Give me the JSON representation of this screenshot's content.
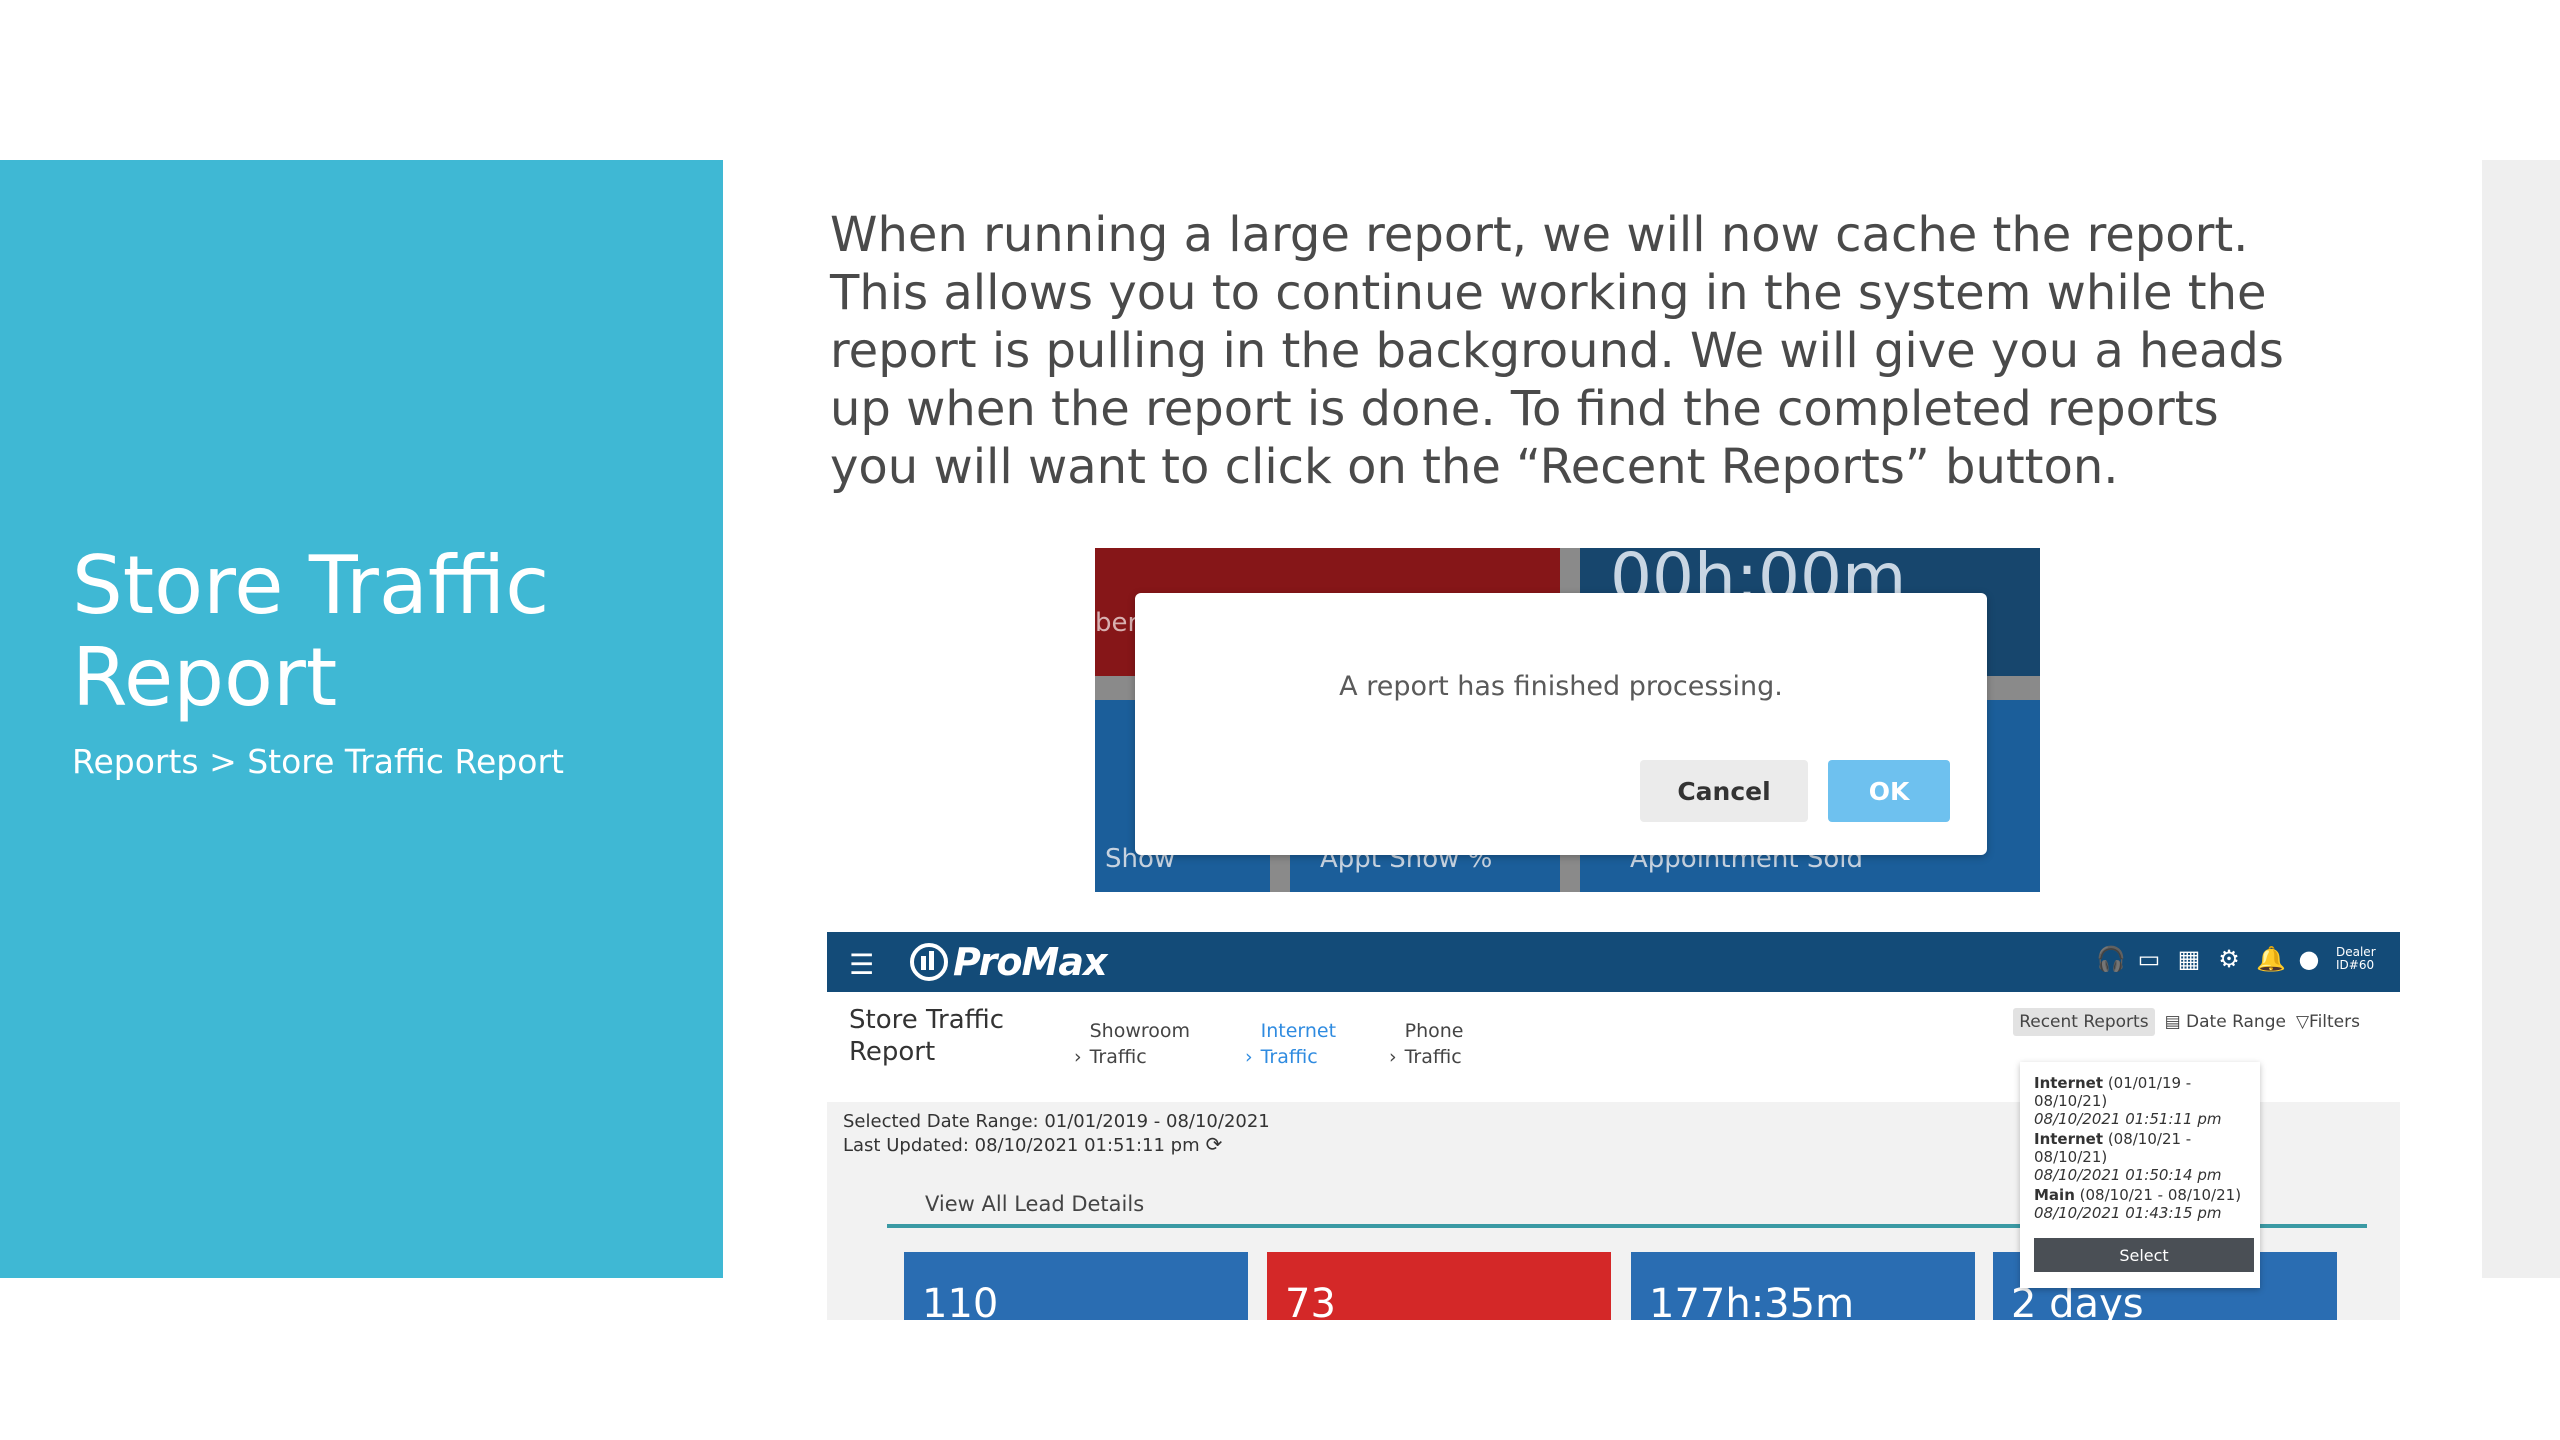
{
  "slide": {
    "title": "Store Traffic Report",
    "subtitle": "Reports > Store Traffic Report",
    "description": "When running a large report, we will now cache the report. This allows you to continue working in the system while the report is pulling in the background. We will give you a heads up when the report is done. To find the completed reports you will want to click on the “Recent Reports” button."
  },
  "dialog_screenshot": {
    "background_tiles": {
      "red_tile_fragment": "ber",
      "navy_tile_value": "00h:00m",
      "foot_1": "Show",
      "foot_2": "Appt Show %",
      "foot_3": "Appointment Sold"
    },
    "dialog": {
      "message": "A report has finished processing.",
      "cancel_label": "Cancel",
      "ok_label": "OK"
    }
  },
  "promax_screenshot": {
    "header": {
      "logo": "ProMax",
      "icons": [
        "headset-icon",
        "monitor-icon",
        "calculator-icon",
        "gear-icon",
        "bell-icon",
        "user-icon"
      ],
      "dealer_label": "Dealer ID#60"
    },
    "page_title": "Store Traffic Report",
    "tabs": [
      {
        "label": "Showroom Traffic",
        "active": false
      },
      {
        "label": "Internet Traffic",
        "active": true
      },
      {
        "label": "Phone Traffic",
        "active": false
      }
    ],
    "toolbar": {
      "recent_reports": "Recent Reports",
      "date_range": "Date Range",
      "filters": "Filters"
    },
    "recent_reports_dropdown": {
      "items": [
        {
          "name": "Internet",
          "range": "(01/01/19 - 08/10/21)",
          "timestamp": "08/10/2021 01:51:11 pm"
        },
        {
          "name": "Internet",
          "range": "(08/10/21 - 08/10/21)",
          "timestamp": "08/10/2021 01:50:14 pm"
        },
        {
          "name": "Main",
          "range": "(08/10/21 - 08/10/21)",
          "timestamp": "08/10/2021 01:43:15 pm"
        }
      ],
      "select_label": "Select"
    },
    "selected_date_range": "Selected Date Range: 01/01/2019 - 08/10/2021",
    "last_updated": "Last Updated: 08/10/2021 01:51:11 pm",
    "view_all_link": "View All Lead Details",
    "stats": [
      "110",
      "73",
      "177h:35m",
      "2 days"
    ],
    "colors": {
      "header": "#134b78",
      "stat_blue": "#2a6db2",
      "stat_red": "#d42828",
      "accent_link": "#2f8be0"
    }
  }
}
